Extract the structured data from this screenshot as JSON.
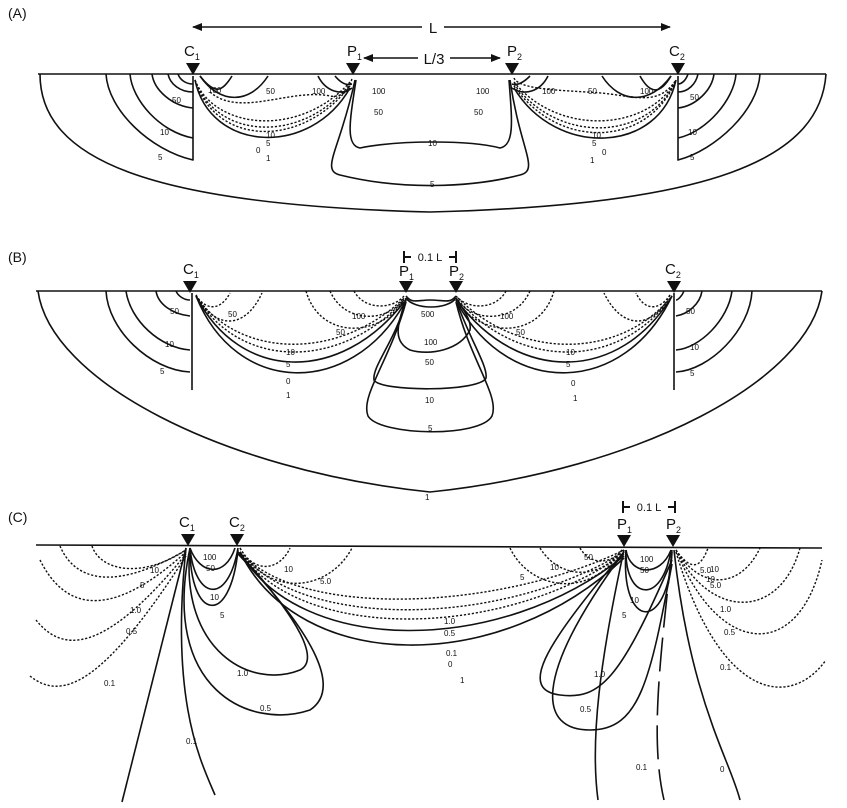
{
  "panels": [
    {
      "label": "(A)",
      "dimension_label": "L",
      "inner_dimension_label": "L/3",
      "electrodes": [
        {
          "letter": "C",
          "sub": "1"
        },
        {
          "letter": "P",
          "sub": "1"
        },
        {
          "letter": "P",
          "sub": "2"
        },
        {
          "letter": "C",
          "sub": "2"
        }
      ],
      "contour_labels": [
        "100",
        "50",
        "10",
        "5",
        "100",
        "50",
        "10",
        "5",
        "0",
        "1",
        "100",
        "50",
        "10",
        "5",
        "100",
        "50",
        "10",
        "5",
        "0",
        "1",
        "10",
        "5",
        "50",
        "50",
        "100",
        "100"
      ]
    },
    {
      "label": "(B)",
      "dimension_label": "0.1 L",
      "electrodes": [
        {
          "letter": "C",
          "sub": "1"
        },
        {
          "letter": "P",
          "sub": "1"
        },
        {
          "letter": "P",
          "sub": "2"
        },
        {
          "letter": "C",
          "sub": "2"
        }
      ],
      "contour_labels": [
        "50",
        "10",
        "5",
        "50",
        "50",
        "100",
        "10",
        "5",
        "0",
        "1",
        "500",
        "100",
        "50",
        "10",
        "5",
        "50",
        "100",
        "10",
        "5",
        "0",
        "1",
        "50",
        "10",
        "5",
        "1"
      ]
    },
    {
      "label": "(C)",
      "dimension_label": "0.1 L",
      "electrodes": [
        {
          "letter": "C",
          "sub": "1"
        },
        {
          "letter": "C",
          "sub": "2"
        },
        {
          "letter": "P",
          "sub": "1"
        },
        {
          "letter": "P",
          "sub": "2"
        }
      ],
      "contour_labels": [
        "100",
        "50",
        "10",
        "5",
        "10",
        "5.0",
        "10",
        "5",
        "1.0",
        "0.5",
        "0.1",
        "1.0",
        "0.5",
        "0.1",
        "1.0",
        "0.5",
        "0.1",
        "0",
        "1",
        "50",
        "10",
        "5",
        "100",
        "50",
        "10",
        "5",
        "5.0",
        "10",
        "10",
        "5.0",
        "1.0",
        "0.5",
        "0.1",
        "1.0",
        "0.5",
        "0.1",
        "0"
      ]
    }
  ]
}
